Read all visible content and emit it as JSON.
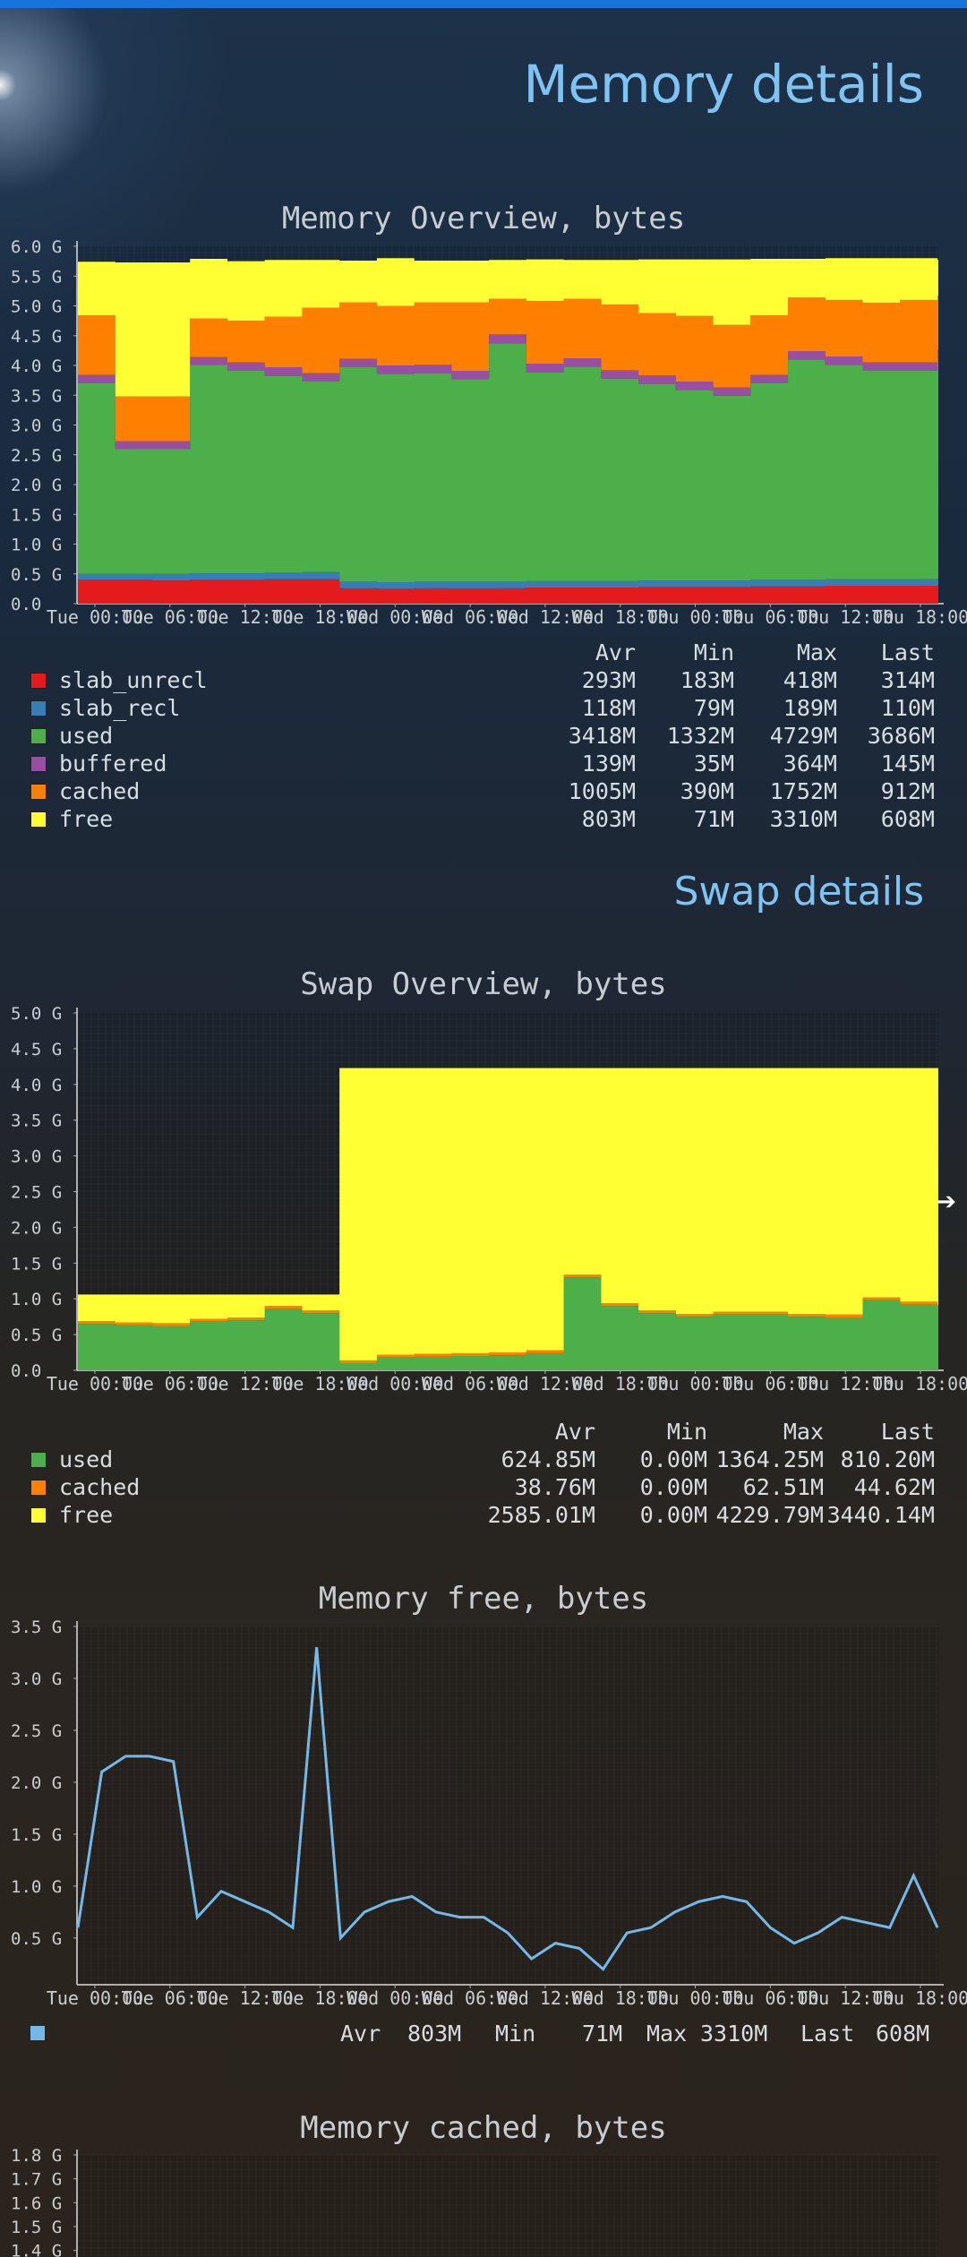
{
  "page": {
    "memory_title": "Memory details",
    "swap_title": "Swap details"
  },
  "colors": {
    "accent": "#7ec3f2",
    "top_bar": "#1a73d9",
    "slab_unrecl": "#e41a1c",
    "slab_recl": "#377eb8",
    "used": "#4daf4a",
    "buffered": "#984ea3",
    "cached": "#ff7f00",
    "free": "#ffff33",
    "line_free": "#74b8e8"
  },
  "legend_headers": {
    "avr": "Avr",
    "min": "Min",
    "max": "Max",
    "last": "Last"
  },
  "chart_data": [
    {
      "type": "area",
      "title": "Memory Overview, bytes",
      "stacked": true,
      "x_labels": [
        "Tue 00:00",
        "Tue 06:00",
        "Tue 12:00",
        "Tue 18:00",
        "Wed 00:00",
        "Wed 06:00",
        "Wed 12:00",
        "Wed 18:00",
        "Thu 00:00",
        "Thu 06:00",
        "Thu 12:00",
        "Thu 18:00"
      ],
      "y_ticks": [
        "0.0",
        "0.5 G",
        "1.0 G",
        "1.5 G",
        "2.0 G",
        "2.5 G",
        "3.0 G",
        "3.5 G",
        "4.0 G",
        "4.5 G",
        "5.0 G",
        "5.5 G",
        "6.0 G"
      ],
      "ylim": [
        0,
        6.0
      ],
      "x": [
        "Tue 00:00",
        "Tue 03:00",
        "Tue 06:00",
        "Tue 09:00",
        "Tue 12:00",
        "Tue 15:00",
        "Tue 18:00",
        "Tue 21:00",
        "Wed 00:00",
        "Wed 03:00",
        "Wed 06:00",
        "Wed 09:00",
        "Wed 12:00",
        "Wed 15:00",
        "Wed 18:00",
        "Wed 21:00",
        "Thu 00:00",
        "Thu 03:00",
        "Thu 06:00",
        "Thu 09:00",
        "Thu 12:00",
        "Thu 15:00",
        "Thu 18:00",
        "Thu 21:00"
      ],
      "series": [
        {
          "name": "slab_unrecl",
          "values": [
            0.4,
            0.4,
            0.39,
            0.4,
            0.4,
            0.41,
            0.41,
            0.26,
            0.25,
            0.26,
            0.26,
            0.26,
            0.27,
            0.27,
            0.27,
            0.28,
            0.28,
            0.28,
            0.29,
            0.29,
            0.3,
            0.3,
            0.3,
            0.31
          ]
        },
        {
          "name": "slab_recl",
          "values": [
            0.1,
            0.1,
            0.11,
            0.11,
            0.11,
            0.11,
            0.12,
            0.11,
            0.11,
            0.11,
            0.11,
            0.11,
            0.11,
            0.11,
            0.11,
            0.11,
            0.11,
            0.11,
            0.11,
            0.11,
            0.11,
            0.11,
            0.11,
            0.11
          ]
        },
        {
          "name": "used",
          "values": [
            3.2,
            2.1,
            2.1,
            3.5,
            3.4,
            3.3,
            3.2,
            3.6,
            3.5,
            3.5,
            3.4,
            4.0,
            3.5,
            3.6,
            3.4,
            3.3,
            3.2,
            3.1,
            3.3,
            3.7,
            3.6,
            3.5,
            3.5,
            3.7
          ]
        },
        {
          "name": "buffered",
          "values": [
            0.14,
            0.13,
            0.13,
            0.13,
            0.14,
            0.15,
            0.14,
            0.14,
            0.14,
            0.14,
            0.14,
            0.15,
            0.15,
            0.14,
            0.14,
            0.14,
            0.14,
            0.14,
            0.14,
            0.14,
            0.14,
            0.14,
            0.14,
            0.15
          ]
        },
        {
          "name": "cached",
          "values": [
            1.0,
            0.75,
            0.75,
            0.65,
            0.7,
            0.85,
            1.1,
            0.95,
            1.0,
            1.05,
            1.15,
            0.6,
            1.05,
            1.0,
            1.1,
            1.05,
            1.1,
            1.05,
            1.0,
            0.9,
            0.95,
            1.0,
            1.05,
            0.9
          ]
        },
        {
          "name": "free",
          "values": [
            0.9,
            2.25,
            2.25,
            1.0,
            1.0,
            0.95,
            0.8,
            0.7,
            0.8,
            0.7,
            0.7,
            0.65,
            0.7,
            0.65,
            0.75,
            0.9,
            0.95,
            1.1,
            0.95,
            0.65,
            0.7,
            0.75,
            0.7,
            0.6
          ]
        }
      ]
    },
    {
      "type": "area",
      "title": "Swap Overview, bytes",
      "stacked": true,
      "x_labels": [
        "Tue 00:00",
        "Tue 06:00",
        "Tue 12:00",
        "Tue 18:00",
        "Wed 00:00",
        "Wed 06:00",
        "Wed 12:00",
        "Wed 18:00",
        "Thu 00:00",
        "Thu 06:00",
        "Thu 12:00",
        "Thu 18:00"
      ],
      "y_ticks": [
        "0.0",
        "0.5 G",
        "1.0 G",
        "1.5 G",
        "2.0 G",
        "2.5 G",
        "3.0 G",
        "3.5 G",
        "4.0 G",
        "4.5 G",
        "5.0 G"
      ],
      "ylim": [
        0,
        5.0
      ],
      "x": [
        "Tue 00:00",
        "Tue 03:00",
        "Tue 06:00",
        "Tue 09:00",
        "Tue 12:00",
        "Tue 15:00",
        "Tue 18:00",
        "Tue 21:00",
        "Wed 00:00",
        "Wed 03:00",
        "Wed 06:00",
        "Wed 09:00",
        "Wed 12:00",
        "Wed 15:00",
        "Wed 18:00",
        "Wed 21:00",
        "Thu 00:00",
        "Thu 03:00",
        "Thu 06:00",
        "Thu 09:00",
        "Thu 12:00",
        "Thu 15:00",
        "Thu 18:00",
        "Thu 21:00"
      ],
      "series": [
        {
          "name": "used",
          "values": [
            0.65,
            0.63,
            0.62,
            0.68,
            0.7,
            0.86,
            0.8,
            0.1,
            0.18,
            0.19,
            0.2,
            0.21,
            0.24,
            1.3,
            0.9,
            0.8,
            0.75,
            0.78,
            0.78,
            0.75,
            0.74,
            0.98,
            0.92,
            0.88
          ]
        },
        {
          "name": "cached",
          "values": [
            0.04,
            0.04,
            0.04,
            0.04,
            0.04,
            0.04,
            0.04,
            0.04,
            0.04,
            0.04,
            0.04,
            0.04,
            0.04,
            0.04,
            0.04,
            0.04,
            0.04,
            0.04,
            0.04,
            0.04,
            0.04,
            0.04,
            0.04,
            0.04
          ]
        },
        {
          "name": "free",
          "values": [
            0.37,
            0.39,
            0.4,
            0.34,
            0.32,
            0.16,
            0.22,
            4.09,
            4.01,
            4.0,
            3.99,
            3.98,
            3.95,
            2.89,
            3.29,
            3.39,
            3.44,
            3.41,
            3.41,
            3.44,
            3.45,
            3.21,
            3.27,
            3.31
          ]
        }
      ]
    },
    {
      "type": "line",
      "title": "Memory free, bytes",
      "x_labels": [
        "Tue 00:00",
        "Tue 06:00",
        "Tue 12:00",
        "Tue 18:00",
        "Wed 00:00",
        "Wed 06:00",
        "Wed 12:00",
        "Wed 18:00",
        "Thu 00:00",
        "Thu 06:00",
        "Thu 12:00",
        "Thu 18:00"
      ],
      "y_ticks": [
        "0.5 G",
        "1.0 G",
        "1.5 G",
        "2.0 G",
        "2.5 G",
        "3.0 G",
        "3.5 G"
      ],
      "ylim": [
        0.05,
        3.5
      ],
      "x": [
        "Tue 00:00",
        "Tue 02:00",
        "Tue 04:00",
        "Tue 06:00",
        "Tue 08:00",
        "Tue 10:00",
        "Tue 12:00",
        "Tue 14:00",
        "Tue 16:00",
        "Tue 18:00",
        "Tue 19:00",
        "Tue 20:00",
        "Tue 22:00",
        "Wed 00:00",
        "Wed 02:00",
        "Wed 04:00",
        "Wed 06:00",
        "Wed 08:00",
        "Wed 10:00",
        "Wed 12:00",
        "Wed 14:00",
        "Wed 16:00",
        "Wed 18:00",
        "Wed 20:00",
        "Wed 22:00",
        "Thu 00:00",
        "Thu 02:00",
        "Thu 04:00",
        "Thu 06:00",
        "Thu 08:00",
        "Thu 10:00",
        "Thu 12:00",
        "Thu 14:00",
        "Thu 16:00",
        "Thu 18:00",
        "Thu 20:00",
        "Thu 22:00"
      ],
      "series": [
        {
          "name": "",
          "values": [
            0.6,
            2.1,
            2.25,
            2.25,
            2.2,
            0.7,
            0.95,
            0.85,
            0.75,
            0.6,
            3.3,
            0.5,
            0.75,
            0.85,
            0.9,
            0.75,
            0.7,
            0.7,
            0.55,
            0.3,
            0.45,
            0.4,
            0.2,
            0.55,
            0.6,
            0.75,
            0.85,
            0.9,
            0.85,
            0.6,
            0.45,
            0.55,
            0.7,
            0.65,
            0.6,
            1.1,
            0.6
          ]
        }
      ]
    },
    {
      "type": "line",
      "title": "Memory cached, bytes",
      "y_ticks": [
        "1.4 G",
        "1.5 G",
        "1.6 G",
        "1.7 G",
        "1.8 G"
      ],
      "ylim": [
        1.35,
        1.8
      ]
    }
  ],
  "memory_legend": [
    {
      "name": "slab_unrecl",
      "avr": "293M",
      "min": "183M",
      "max": "418M",
      "last": "314M"
    },
    {
      "name": "slab_recl",
      "avr": "118M",
      "min": "79M",
      "max": "189M",
      "last": "110M"
    },
    {
      "name": "used",
      "avr": "3418M",
      "min": "1332M",
      "max": "4729M",
      "last": "3686M"
    },
    {
      "name": "buffered",
      "avr": "139M",
      "min": "35M",
      "max": "364M",
      "last": "145M"
    },
    {
      "name": "cached",
      "avr": "1005M",
      "min": "390M",
      "max": "1752M",
      "last": "912M"
    },
    {
      "name": "free",
      "avr": "803M",
      "min": "71M",
      "max": "3310M",
      "last": "608M"
    }
  ],
  "swap_legend": [
    {
      "name": "used",
      "avr": "624.85M",
      "min": "0.00M",
      "max": "1364.25M",
      "last": "810.20M"
    },
    {
      "name": "cached",
      "avr": "38.76M",
      "min": "0.00M",
      "max": "62.51M",
      "last": "44.62M"
    },
    {
      "name": "free",
      "avr": "2585.01M",
      "min": "0.00M",
      "max": "4229.79M",
      "last": "3440.14M"
    }
  ],
  "free_legend": {
    "avr_label": "Avr",
    "avr": "803M",
    "min_label": "Min",
    "min": "71M",
    "max_label": "Max",
    "max": "3310M",
    "last_label": "Last",
    "last": "608M"
  }
}
